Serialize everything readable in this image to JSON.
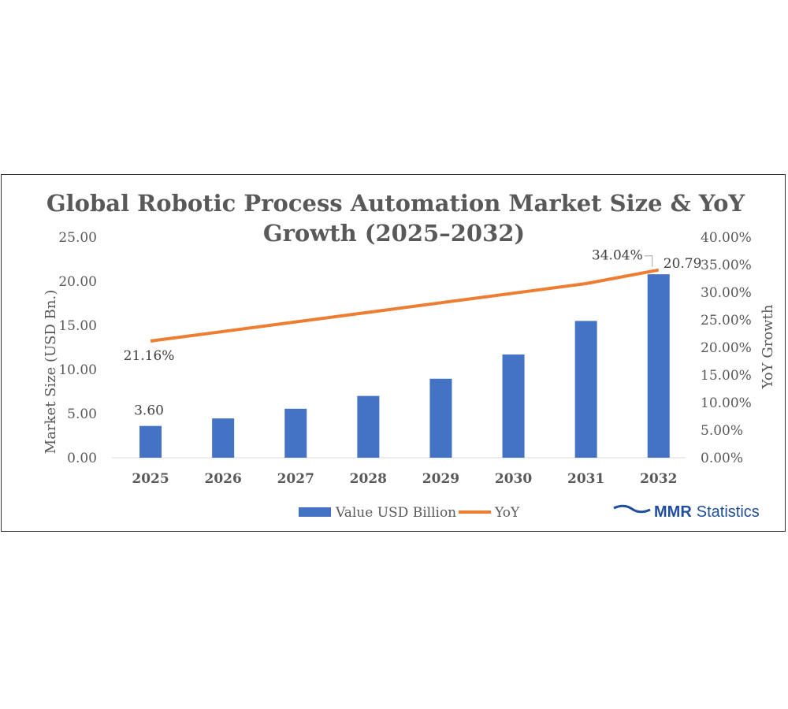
{
  "chart_data": {
    "type": "bar+line",
    "title_line1": "Global Robotic Process Automation Market Size & YoY",
    "title_line2": "Growth (2025–2032)",
    "categories": [
      "2025",
      "2026",
      "2027",
      "2028",
      "2029",
      "2030",
      "2031",
      "2032"
    ],
    "series": [
      {
        "name": "Value USD Billion",
        "type": "bar",
        "axis": "left",
        "color": "#4472c4",
        "values": [
          3.6,
          4.45,
          5.55,
          7.0,
          8.95,
          11.7,
          15.5,
          20.79
        ]
      },
      {
        "name": "YoY",
        "type": "line",
        "axis": "right",
        "color": "#ed7d31",
        "values": [
          21.16,
          22.89,
          24.63,
          26.36,
          28.1,
          29.83,
          31.57,
          34.04
        ]
      }
    ],
    "left_axis": {
      "label": "Market Size (USD Bn.)",
      "min": 0,
      "max": 25,
      "ticks": [
        "0.00",
        "5.00",
        "10.00",
        "15.00",
        "20.00",
        "25.00"
      ]
    },
    "right_axis": {
      "label": "YoY Growth",
      "min": 0,
      "max": 40,
      "ticks": [
        "0.00%",
        "5.00%",
        "10.00%",
        "15.00%",
        "20.00%",
        "25.00%",
        "30.00%",
        "35.00%",
        "40.00%"
      ]
    },
    "data_labels": {
      "bar_first": "3.60",
      "bar_last": "20.79",
      "line_first": "21.16%",
      "line_last": "34.04%"
    },
    "legend": {
      "position": "bottom",
      "items": [
        "Value USD Billion",
        "YoY"
      ]
    }
  },
  "brand": {
    "name_bold": "MMR",
    "name_rest": "Statistics",
    "color": "#1f4e9c"
  }
}
